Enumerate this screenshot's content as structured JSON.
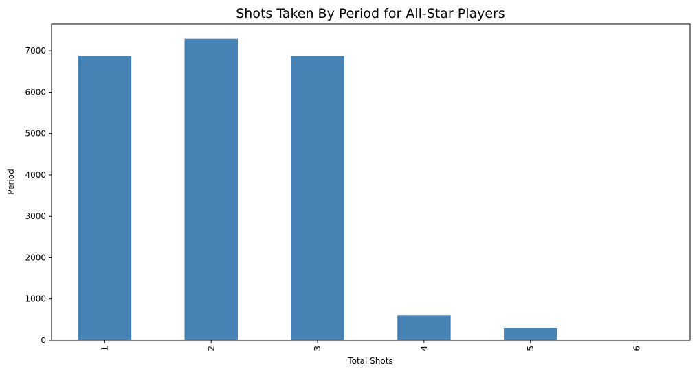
{
  "chart_data": {
    "type": "bar",
    "title": "Shots Taken By Period for All-Star Players",
    "xlabel": "Total Shots",
    "ylabel": "Period",
    "categories": [
      "1",
      "2",
      "3",
      "4",
      "5",
      "6"
    ],
    "values": [
      6880,
      7290,
      6880,
      610,
      300,
      5
    ],
    "ylim": [
      0,
      7650
    ],
    "yticks": [
      0,
      1000,
      2000,
      3000,
      4000,
      5000,
      6000,
      7000
    ],
    "bar_color": "#4682b4",
    "grid": false,
    "legend": "none"
  }
}
